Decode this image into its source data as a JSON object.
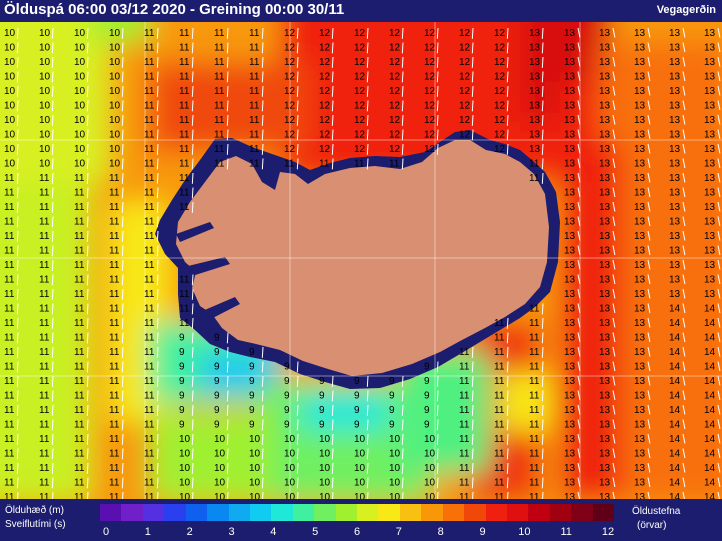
{
  "header": {
    "title": "Ölduspá 06:00 03/12 2020 - Greining 00:00 30/11",
    "brand": "Vegagerðin"
  },
  "legend": {
    "left_line1": "Ölduhæð (m)",
    "left_line2": "Sveiflutími (s)",
    "right_line1": "Öldustefna",
    "right_line2": "(örvar)",
    "ticks": [
      "0",
      "1",
      "2",
      "3",
      "4",
      "5",
      "6",
      "7",
      "8",
      "9",
      "10",
      "11",
      "12"
    ],
    "colors": [
      "#5a0fb0",
      "#7020c8",
      "#5530e0",
      "#2a40f0",
      "#1060f0",
      "#0a88f2",
      "#10aaf0",
      "#10ccf0",
      "#20e8d8",
      "#40f0a0",
      "#70f060",
      "#a0f030",
      "#d8f020",
      "#f8e818",
      "#f8c010",
      "#f89808",
      "#f87008",
      "#f04808",
      "#f02010",
      "#e01010",
      "#c00010",
      "#a00010",
      "#800018",
      "#600018"
    ]
  },
  "map": {
    "land_color": "#d99072",
    "coast_color": "#1c1d6e"
  }
}
